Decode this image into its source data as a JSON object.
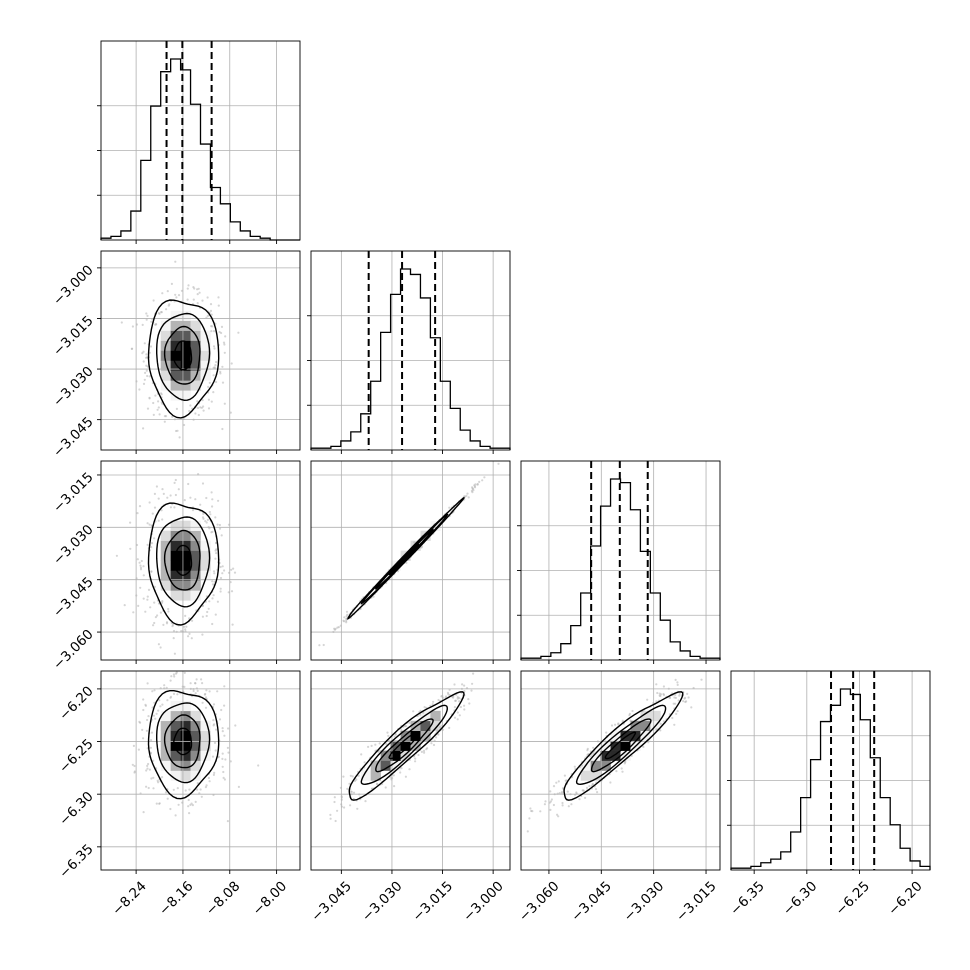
{
  "chart_data": {
    "type": "scatter",
    "layout": "corner",
    "grid": true,
    "params": [
      {
        "range": [
          -8.3,
          -7.96
        ],
        "ticks": [
          -8.24,
          -8.16,
          -8.08,
          -8.0
        ],
        "tick_labels": [
          "−8.24",
          "−8.16",
          "−8.08",
          "−8.00"
        ]
      },
      {
        "range": [
          -3.054,
          -2.995
        ],
        "ticks": [
          -3.045,
          -3.03,
          -3.015,
          -3.0
        ],
        "tick_labels": [
          "−3.045",
          "−3.030",
          "−3.015",
          "−3.000"
        ]
      },
      {
        "range": [
          -3.068,
          -3.011
        ],
        "ticks": [
          -3.06,
          -3.045,
          -3.03,
          -3.015
        ],
        "tick_labels": [
          "−3.060",
          "−3.045",
          "−3.030",
          "−3.015"
        ]
      },
      {
        "range": [
          -6.372,
          -6.183
        ],
        "ticks": [
          -6.35,
          -6.3,
          -6.25,
          -6.2
        ],
        "tick_labels": [
          "−6.35",
          "−6.30",
          "−6.25",
          "−6.20"
        ]
      }
    ],
    "histograms": [
      {
        "param": 0,
        "quantiles": [
          -8.188,
          -8.161,
          -8.111
        ],
        "counts": [
          0.01,
          0.02,
          0.05,
          0.16,
          0.44,
          0.74,
          0.93,
          1.0,
          0.94,
          0.75,
          0.53,
          0.29,
          0.2,
          0.1,
          0.05,
          0.02,
          0.01,
          0.0,
          0.0,
          0.0
        ]
      },
      {
        "param": 1,
        "quantiles": [
          -3.0369,
          -3.027,
          -3.0172
        ],
        "counts": [
          0.01,
          0.01,
          0.02,
          0.05,
          0.1,
          0.2,
          0.38,
          0.65,
          0.86,
          1.0,
          0.97,
          0.84,
          0.62,
          0.38,
          0.23,
          0.11,
          0.05,
          0.02,
          0.01,
          0.01
        ]
      },
      {
        "param": 2,
        "quantiles": [
          -3.0479,
          -3.0397,
          -3.0317
        ],
        "counts": [
          0.01,
          0.01,
          0.02,
          0.04,
          0.09,
          0.19,
          0.37,
          0.63,
          0.85,
          1.0,
          0.98,
          0.83,
          0.6,
          0.37,
          0.22,
          0.1,
          0.05,
          0.02,
          0.01,
          0.01
        ]
      },
      {
        "param": 3,
        "quantiles": [
          -6.277,
          -6.256,
          -6.236
        ],
        "counts": [
          0.01,
          0.01,
          0.02,
          0.04,
          0.06,
          0.1,
          0.21,
          0.4,
          0.61,
          0.82,
          0.91,
          1.0,
          0.97,
          0.83,
          0.62,
          0.4,
          0.25,
          0.12,
          0.05,
          0.02
        ]
      }
    ],
    "panels_2d": [
      {
        "row": 1,
        "col": 0,
        "mean": [
          -8.16,
          -3.026
        ],
        "sd": [
          0.03,
          0.0085
        ],
        "rho": 0.0
      },
      {
        "row": 2,
        "col": 0,
        "mean": [
          -8.16,
          -3.0395
        ],
        "sd": [
          0.03,
          0.0085
        ],
        "rho": 0.0
      },
      {
        "row": 2,
        "col": 1,
        "mean": [
          -3.0265,
          -3.0393
        ],
        "sd": [
          0.0085,
          0.0085
        ],
        "rho": 0.998
      },
      {
        "row": 3,
        "col": 0,
        "mean": [
          -8.16,
          -6.25
        ],
        "sd": [
          0.03,
          0.025
        ],
        "rho": 0.0
      },
      {
        "row": 3,
        "col": 1,
        "mean": [
          -3.0265,
          -6.254
        ],
        "sd": [
          0.0085,
          0.025
        ],
        "rho": 0.93
      },
      {
        "row": 3,
        "col": 2,
        "mean": [
          -3.0395,
          -6.254
        ],
        "sd": [
          0.0085,
          0.025
        ],
        "rho": 0.93
      }
    ],
    "contour_levels": [
      0.5,
      1.0,
      1.5,
      2.0
    ],
    "colors": {
      "line": "#000000",
      "points": "#b3b3b3",
      "grid": "#b0b0b0",
      "density_max": "#000000"
    }
  }
}
